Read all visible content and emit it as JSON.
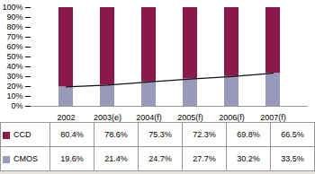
{
  "chart_data": {
    "type": "bar",
    "stacked": true,
    "categories": [
      "2002",
      "2003(e)",
      "2004(f)",
      "2005(f)",
      "2006(f)",
      "2007(f)"
    ],
    "series": [
      {
        "name": "CMOS",
        "color": "#9999BB",
        "values": [
          19.6,
          21.4,
          24.7,
          27.7,
          30.2,
          33.5
        ],
        "value_labels": [
          "19.6%",
          "21.4%",
          "24.7%",
          "27.7%",
          "30.2%",
          "33.5%"
        ]
      },
      {
        "name": "CCD",
        "color": "#8B1A4A",
        "values": [
          80.4,
          78.6,
          75.3,
          72.3,
          69.8,
          66.5
        ],
        "value_labels": [
          "80.4%",
          "78.6%",
          "75.3%",
          "72.3%",
          "69.8%",
          "66.5%"
        ]
      },
      {
        "type": "line",
        "color": "#111111",
        "values": [
          19.6,
          21.4,
          24.7,
          27.7,
          30.2,
          33.5
        ]
      }
    ],
    "ylim": [
      0,
      100
    ],
    "yticks": [
      {
        "value": 0,
        "label": "0%"
      },
      {
        "value": 10,
        "label": "10%"
      },
      {
        "value": 20,
        "label": "20%"
      },
      {
        "value": 30,
        "label": "30%"
      },
      {
        "value": 40,
        "label": "40%"
      },
      {
        "value": 50,
        "label": "50%"
      },
      {
        "value": 60,
        "label": "60%"
      },
      {
        "value": 70,
        "label": "70%"
      },
      {
        "value": 80,
        "label": "80%"
      },
      {
        "value": 90,
        "label": "90%"
      },
      {
        "value": 100,
        "label": "100%"
      }
    ],
    "grid": false
  }
}
